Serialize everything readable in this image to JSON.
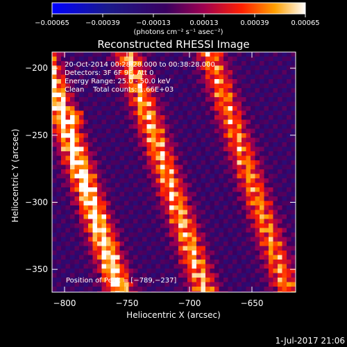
{
  "chart_data": {
    "type": "heatmap",
    "title": "Reconstructed RHESSI Image",
    "xlabel": "Heliocentric X (arcsec)",
    "ylabel": "Heliocentric Y (arcsec)",
    "xlim": [
      -810,
      -615
    ],
    "ylim": [
      -367,
      -188
    ],
    "x_ticks": [
      -800,
      -750,
      -700,
      -650
    ],
    "x_tick_labels": [
      "−800",
      "−750",
      "−700",
      "−650"
    ],
    "y_ticks": [
      -200,
      -250,
      -300,
      -350
    ],
    "y_tick_labels": [
      "−200",
      "−250",
      "−300",
      "−350"
    ],
    "colorbar": {
      "range": [
        -0.00065,
        0.00065
      ],
      "ticks": [
        -0.00065,
        -0.00039,
        -0.00013,
        0.00013,
        0.00039,
        0.00065
      ],
      "tick_labels": [
        "−0.00065",
        "−0.00039",
        "−0.00013",
        "0.00013",
        "0.00039",
        "0.00065"
      ],
      "unit_label": "(photons cm⁻² s⁻¹ asec⁻²)"
    },
    "annotations": [
      "20-Oct-2014 00:28:28.000 to 00:38:28.000",
      "Detectors: 3F 6F 9F, Att 0",
      "Energy Range: 25.0 - 50.0 keV",
      "Clean    Total counts: 1.66E+03"
    ],
    "peak_label": "Position of Peak = [−789,−237]",
    "peak": [
      -789,
      -237
    ],
    "colors": {
      "low": "#0000ff",
      "zero": "#1a0050",
      "mid": "#ff2000",
      "high": "#ffffff"
    }
  },
  "footer": {
    "date": "1-Jul-2017 21:06"
  }
}
